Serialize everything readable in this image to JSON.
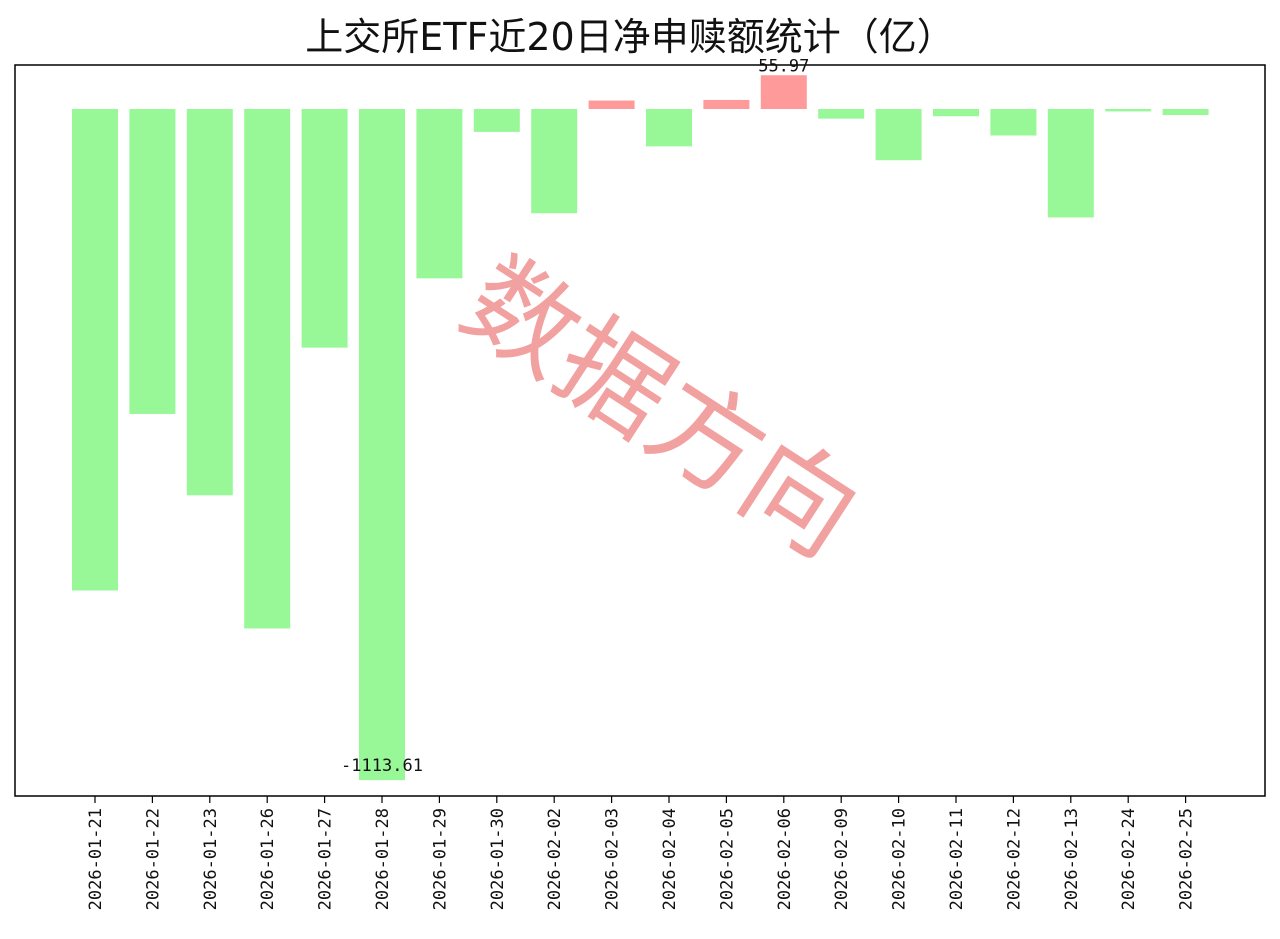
{
  "chart_data": {
    "type": "bar",
    "title": "上交所ETF近20日净申赎额统计（亿）",
    "categories": [
      "2026-01-21",
      "2026-01-22",
      "2026-01-23",
      "2026-01-26",
      "2026-01-27",
      "2026-01-28",
      "2026-01-29",
      "2026-01-30",
      "2026-02-02",
      "2026-02-03",
      "2026-02-04",
      "2026-02-05",
      "2026-02-06",
      "2026-02-09",
      "2026-02-10",
      "2026-02-11",
      "2026-02-12",
      "2026-02-13",
      "2026-02-24",
      "2026-02-25"
    ],
    "values": [
      -799,
      -506,
      -641,
      -862,
      -396,
      -1113.61,
      -281,
      -38,
      -173,
      14,
      -62,
      15,
      55.97,
      -16,
      -85,
      -12,
      -44,
      -180,
      -4,
      -10
    ],
    "data_labels": [
      {
        "index": 5,
        "text": "-1113.61"
      },
      {
        "index": 12,
        "text": "55.97"
      }
    ],
    "colors": {
      "positive": "#ff9a9a",
      "negative": "#98f898"
    },
    "xlabel": "",
    "ylabel": "",
    "ylim": [
      -1140,
      73
    ],
    "grid": false,
    "watermark": "数据方向"
  }
}
